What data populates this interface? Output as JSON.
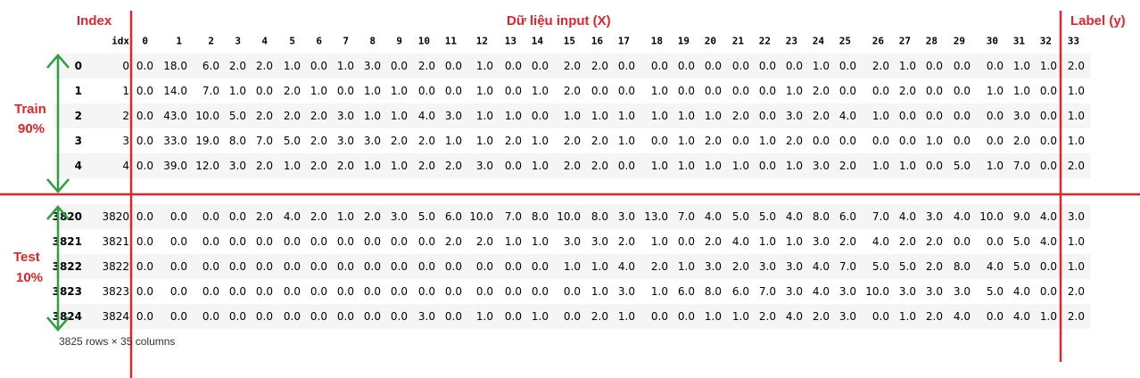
{
  "annotations": {
    "index": "Index",
    "input": "Dữ liệu input (X)",
    "label": "Label (y)",
    "train": [
      "Train",
      "90%"
    ],
    "test": [
      "Test",
      "10%"
    ]
  },
  "table": {
    "columns": [
      "idx",
      "0",
      "1",
      "2",
      "3",
      "4",
      "5",
      "6",
      "7",
      "8",
      "9",
      "10",
      "11",
      "12",
      "13",
      "14",
      "15",
      "16",
      "17",
      "18",
      "19",
      "20",
      "21",
      "22",
      "23",
      "24",
      "25",
      "26",
      "27",
      "28",
      "29",
      "30",
      "31",
      "32",
      "33"
    ],
    "rows": [
      {
        "index": "0",
        "cells": [
          "0",
          "0.0",
          "18.0",
          "6.0",
          "2.0",
          "2.0",
          "1.0",
          "0.0",
          "1.0",
          "3.0",
          "0.0",
          "2.0",
          "0.0",
          "1.0",
          "0.0",
          "0.0",
          "2.0",
          "2.0",
          "0.0",
          "0.0",
          "0.0",
          "0.0",
          "0.0",
          "0.0",
          "0.0",
          "1.0",
          "0.0",
          "2.0",
          "1.0",
          "0.0",
          "0.0",
          "0.0",
          "1.0",
          "1.0",
          "2.0"
        ]
      },
      {
        "index": "1",
        "cells": [
          "1",
          "0.0",
          "14.0",
          "7.0",
          "1.0",
          "0.0",
          "2.0",
          "1.0",
          "0.0",
          "1.0",
          "1.0",
          "0.0",
          "0.0",
          "1.0",
          "0.0",
          "1.0",
          "2.0",
          "0.0",
          "0.0",
          "1.0",
          "0.0",
          "0.0",
          "0.0",
          "0.0",
          "1.0",
          "2.0",
          "0.0",
          "0.0",
          "2.0",
          "0.0",
          "0.0",
          "1.0",
          "1.0",
          "0.0",
          "1.0"
        ]
      },
      {
        "index": "2",
        "cells": [
          "2",
          "0.0",
          "43.0",
          "10.0",
          "5.0",
          "2.0",
          "2.0",
          "2.0",
          "3.0",
          "1.0",
          "1.0",
          "4.0",
          "3.0",
          "1.0",
          "1.0",
          "0.0",
          "1.0",
          "1.0",
          "1.0",
          "1.0",
          "1.0",
          "1.0",
          "2.0",
          "0.0",
          "3.0",
          "2.0",
          "4.0",
          "1.0",
          "0.0",
          "0.0",
          "0.0",
          "0.0",
          "3.0",
          "0.0",
          "1.0"
        ]
      },
      {
        "index": "3",
        "cells": [
          "3",
          "0.0",
          "33.0",
          "19.0",
          "8.0",
          "7.0",
          "5.0",
          "2.0",
          "3.0",
          "3.0",
          "2.0",
          "2.0",
          "1.0",
          "1.0",
          "2.0",
          "1.0",
          "2.0",
          "2.0",
          "1.0",
          "0.0",
          "1.0",
          "2.0",
          "0.0",
          "1.0",
          "2.0",
          "0.0",
          "0.0",
          "0.0",
          "0.0",
          "1.0",
          "0.0",
          "0.0",
          "2.0",
          "0.0",
          "1.0"
        ]
      },
      {
        "index": "4",
        "cells": [
          "4",
          "0.0",
          "39.0",
          "12.0",
          "3.0",
          "2.0",
          "1.0",
          "2.0",
          "2.0",
          "1.0",
          "1.0",
          "2.0",
          "2.0",
          "3.0",
          "0.0",
          "1.0",
          "2.0",
          "2.0",
          "0.0",
          "1.0",
          "1.0",
          "1.0",
          "1.0",
          "0.0",
          "1.0",
          "3.0",
          "2.0",
          "1.0",
          "1.0",
          "0.0",
          "5.0",
          "1.0",
          "7.0",
          "0.0",
          "2.0"
        ]
      },
      {
        "index": "3820",
        "cells": [
          "3820",
          "0.0",
          "0.0",
          "0.0",
          "0.0",
          "2.0",
          "4.0",
          "2.0",
          "1.0",
          "2.0",
          "3.0",
          "5.0",
          "6.0",
          "10.0",
          "7.0",
          "8.0",
          "10.0",
          "8.0",
          "3.0",
          "13.0",
          "7.0",
          "4.0",
          "5.0",
          "5.0",
          "4.0",
          "8.0",
          "6.0",
          "7.0",
          "4.0",
          "3.0",
          "4.0",
          "10.0",
          "9.0",
          "4.0",
          "3.0"
        ]
      },
      {
        "index": "3821",
        "cells": [
          "3821",
          "0.0",
          "0.0",
          "0.0",
          "0.0",
          "0.0",
          "0.0",
          "0.0",
          "0.0",
          "0.0",
          "0.0",
          "0.0",
          "2.0",
          "2.0",
          "1.0",
          "1.0",
          "3.0",
          "3.0",
          "2.0",
          "1.0",
          "0.0",
          "2.0",
          "4.0",
          "1.0",
          "1.0",
          "3.0",
          "2.0",
          "4.0",
          "2.0",
          "2.0",
          "0.0",
          "0.0",
          "5.0",
          "4.0",
          "1.0"
        ]
      },
      {
        "index": "3822",
        "cells": [
          "3822",
          "0.0",
          "0.0",
          "0.0",
          "0.0",
          "0.0",
          "0.0",
          "0.0",
          "0.0",
          "0.0",
          "0.0",
          "0.0",
          "0.0",
          "0.0",
          "0.0",
          "0.0",
          "1.0",
          "1.0",
          "4.0",
          "2.0",
          "1.0",
          "3.0",
          "2.0",
          "3.0",
          "3.0",
          "4.0",
          "7.0",
          "5.0",
          "5.0",
          "2.0",
          "8.0",
          "4.0",
          "5.0",
          "0.0",
          "1.0"
        ]
      },
      {
        "index": "3823",
        "cells": [
          "3823",
          "0.0",
          "0.0",
          "0.0",
          "0.0",
          "0.0",
          "0.0",
          "0.0",
          "0.0",
          "0.0",
          "0.0",
          "0.0",
          "0.0",
          "0.0",
          "0.0",
          "0.0",
          "0.0",
          "1.0",
          "3.0",
          "1.0",
          "6.0",
          "8.0",
          "6.0",
          "7.0",
          "3.0",
          "4.0",
          "3.0",
          "10.0",
          "3.0",
          "3.0",
          "3.0",
          "5.0",
          "4.0",
          "0.0",
          "2.0"
        ]
      },
      {
        "index": "3824",
        "cells": [
          "3824",
          "0.0",
          "0.0",
          "0.0",
          "0.0",
          "0.0",
          "0.0",
          "0.0",
          "0.0",
          "0.0",
          "0.0",
          "3.0",
          "0.0",
          "1.0",
          "0.0",
          "1.0",
          "0.0",
          "2.0",
          "1.0",
          "0.0",
          "0.0",
          "1.0",
          "1.0",
          "2.0",
          "4.0",
          "2.0",
          "3.0",
          "0.0",
          "1.0",
          "2.0",
          "4.0",
          "0.0",
          "4.0",
          "1.0",
          "2.0"
        ]
      }
    ]
  },
  "footer": "3825 rows × 35 columns"
}
